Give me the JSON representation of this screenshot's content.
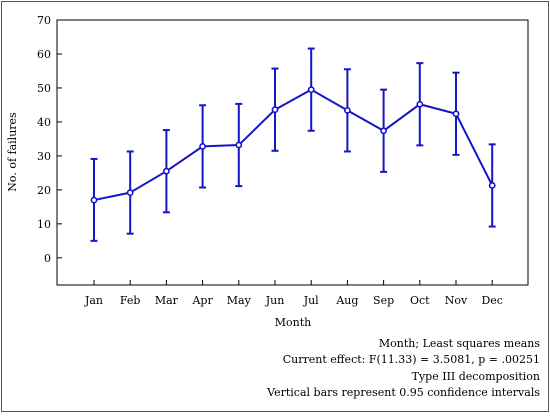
{
  "chart_data": {
    "type": "line",
    "title": "",
    "xlabel": "Month",
    "ylabel": "No. of failures",
    "categories": [
      "Jan",
      "Feb",
      "Mar",
      "Apr",
      "May",
      "Jun",
      "Jul",
      "Aug",
      "Sep",
      "Oct",
      "Nov",
      "Dec"
    ],
    "series": [
      {
        "values": [
          17.0,
          19.2,
          25.5,
          32.8,
          33.2,
          43.6,
          49.5,
          43.4,
          37.4,
          45.2,
          42.4,
          21.3
        ],
        "lower": [
          5.0,
          7.1,
          13.4,
          20.7,
          21.1,
          31.5,
          37.4,
          31.3,
          25.3,
          33.1,
          30.3,
          9.2
        ],
        "upper": [
          29.1,
          31.3,
          37.6,
          44.9,
          45.3,
          55.7,
          61.6,
          55.5,
          49.5,
          57.3,
          54.5,
          33.4
        ]
      }
    ],
    "ylim": [
      -8,
      70
    ],
    "yticks": [
      0,
      10,
      20,
      30,
      40,
      50,
      60,
      70
    ],
    "grid": false,
    "line_color": "#1515c8",
    "annotations": [
      "Month; Least squares means",
      "Current effect: F(11.33) = 3.5081, p = .00251",
      "Type III decomposition",
      "Vertical bars represent 0.95 confidence intervals"
    ]
  }
}
